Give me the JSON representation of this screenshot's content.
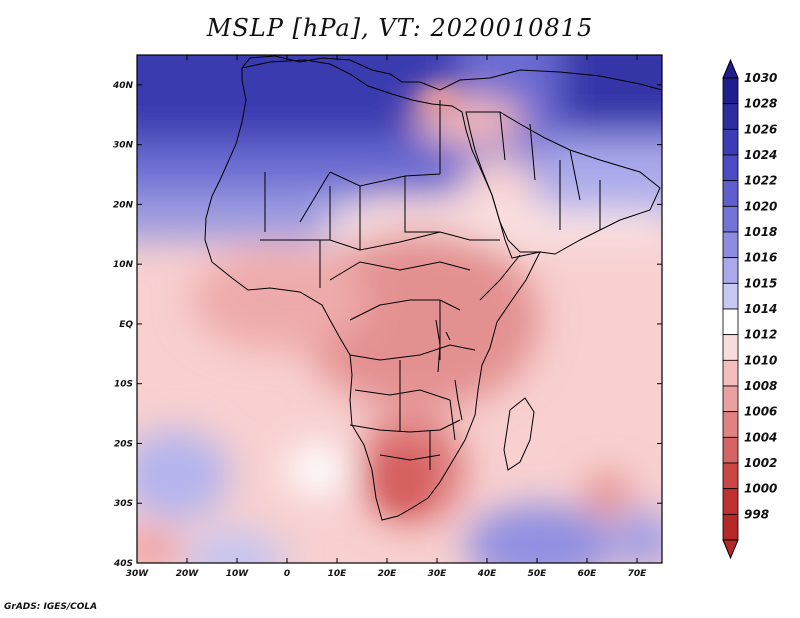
{
  "title": "MSLP [hPa], VT: 2020010815",
  "credit": "GrADS: IGES/COLA",
  "map": {
    "lon_labels": [
      "30W",
      "20W",
      "10W",
      "0",
      "10E",
      "20E",
      "30E",
      "40E",
      "50E",
      "60E",
      "70E"
    ],
    "lon_values": [
      -30,
      -20,
      -10,
      0,
      10,
      20,
      30,
      40,
      50,
      60,
      70
    ],
    "lat_labels": [
      "40N",
      "30N",
      "20N",
      "10N",
      "EQ",
      "10S",
      "20S",
      "30S",
      "40S"
    ],
    "lat_values": [
      40,
      30,
      20,
      10,
      0,
      -10,
      -20,
      -30,
      -40
    ],
    "lon_range": [
      -30,
      75
    ],
    "lat_range": [
      -40,
      45
    ]
  },
  "colorbar": {
    "levels": [
      "1030",
      "1028",
      "1026",
      "1024",
      "1022",
      "1020",
      "1018",
      "1016",
      "1015",
      "1014",
      "1012",
      "1010",
      "1008",
      "1006",
      "1004",
      "1002",
      "1000",
      "998"
    ],
    "colors": [
      "#1e1e8c",
      "#2d2da0",
      "#3c3cb4",
      "#4b4bc3",
      "#5f5fcd",
      "#7373d7",
      "#8c8ce1",
      "#aaaaeb",
      "#c8c8f5",
      "#ffffff",
      "#fadcdc",
      "#f5bebe",
      "#eba0a0",
      "#e18282",
      "#d76464",
      "#cd4646",
      "#c03232",
      "#b42828"
    ]
  },
  "pressure_regions": [
    {
      "name": "north-africa-high",
      "level": "1024"
    },
    {
      "name": "arabia-low",
      "level": "1010"
    },
    {
      "name": "central-africa-low",
      "level": "1008"
    },
    {
      "name": "southern-africa-low",
      "level": "1006"
    },
    {
      "name": "south-atlantic-high",
      "level": "1018"
    },
    {
      "name": "south-indian-high",
      "level": "1020"
    }
  ]
}
